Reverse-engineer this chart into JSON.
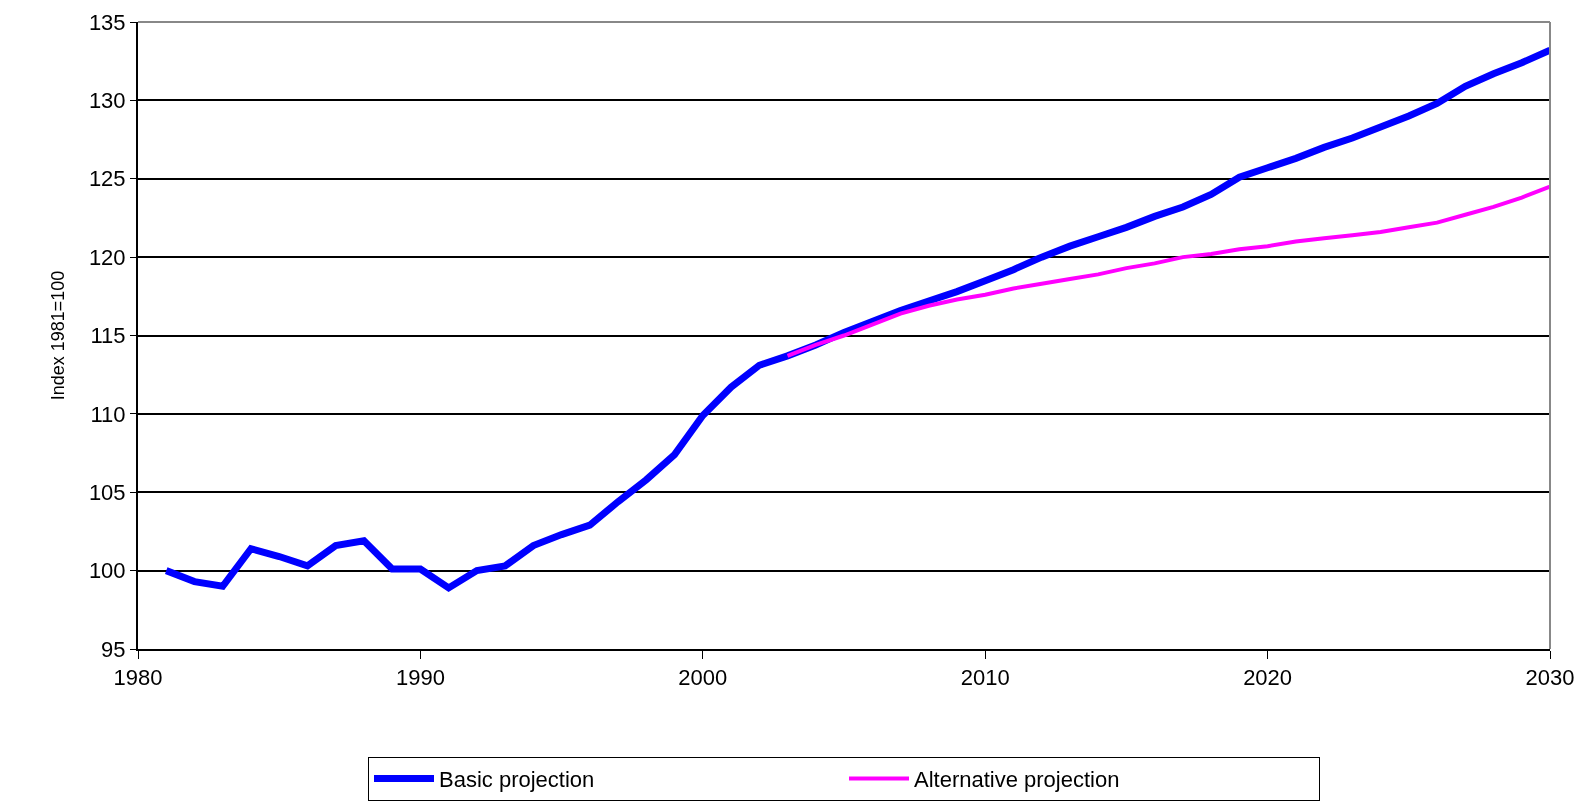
{
  "chart_data": {
    "type": "line",
    "ylabel": "Index 1981=100",
    "series": [
      {
        "name": "Basic projection",
        "color": "#0000ff",
        "x": [
          1981,
          1982,
          1983,
          1984,
          1985,
          1986,
          1987,
          1988,
          1989,
          1990,
          1991,
          1992,
          1993,
          1994,
          1995,
          1996,
          1997,
          1998,
          1999,
          2000,
          2001,
          2002,
          2003,
          2004,
          2005,
          2006,
          2007,
          2008,
          2009,
          2010,
          2011,
          2012,
          2013,
          2014,
          2015,
          2016,
          2017,
          2018,
          2019,
          2020,
          2021,
          2022,
          2023,
          2024,
          2025,
          2026,
          2027,
          2028,
          2029,
          2030
        ],
        "values": [
          100,
          99.3,
          99.0,
          101.4,
          100.9,
          100.3,
          101.6,
          101.9,
          100.1,
          100.1,
          98.9,
          100.0,
          100.3,
          101.6,
          102.3,
          102.9,
          104.4,
          105.8,
          107.4,
          109.9,
          111.7,
          113.1,
          113.7,
          114.4,
          115.2,
          115.9,
          116.6,
          117.2,
          117.8,
          118.5,
          119.2,
          120.0,
          120.7,
          121.3,
          121.9,
          122.6,
          123.2,
          124.0,
          125.1,
          125.7,
          126.3,
          127.0,
          127.6,
          128.3,
          129.0,
          129.8,
          130.9,
          131.7,
          132.4,
          133.2
        ]
      },
      {
        "name": "Alternative projection",
        "color": "#ff00ff",
        "x": [
          2003,
          2004,
          2005,
          2006,
          2007,
          2008,
          2009,
          2010,
          2011,
          2012,
          2013,
          2014,
          2015,
          2016,
          2017,
          2018,
          2019,
          2020,
          2021,
          2022,
          2023,
          2024,
          2025,
          2026,
          2027,
          2028,
          2029,
          2030
        ],
        "values": [
          113.7,
          114.4,
          115.0,
          115.7,
          116.4,
          116.9,
          117.3,
          117.6,
          118.0,
          118.3,
          118.6,
          118.9,
          119.3,
          119.6,
          120.0,
          120.2,
          120.5,
          120.7,
          121.0,
          121.2,
          121.4,
          121.6,
          121.9,
          122.2,
          122.7,
          123.2,
          123.8,
          124.5
        ]
      }
    ],
    "xlim": [
      1980,
      2030
    ],
    "xticks": [
      1980,
      1990,
      2000,
      2010,
      2020,
      2030
    ],
    "ylim": [
      95,
      135
    ],
    "yticks": [
      95,
      100,
      105,
      110,
      115,
      120,
      125,
      130,
      135
    ],
    "grid": "y",
    "legend": "bottom",
    "marker": "none",
    "line_style": "solid"
  }
}
